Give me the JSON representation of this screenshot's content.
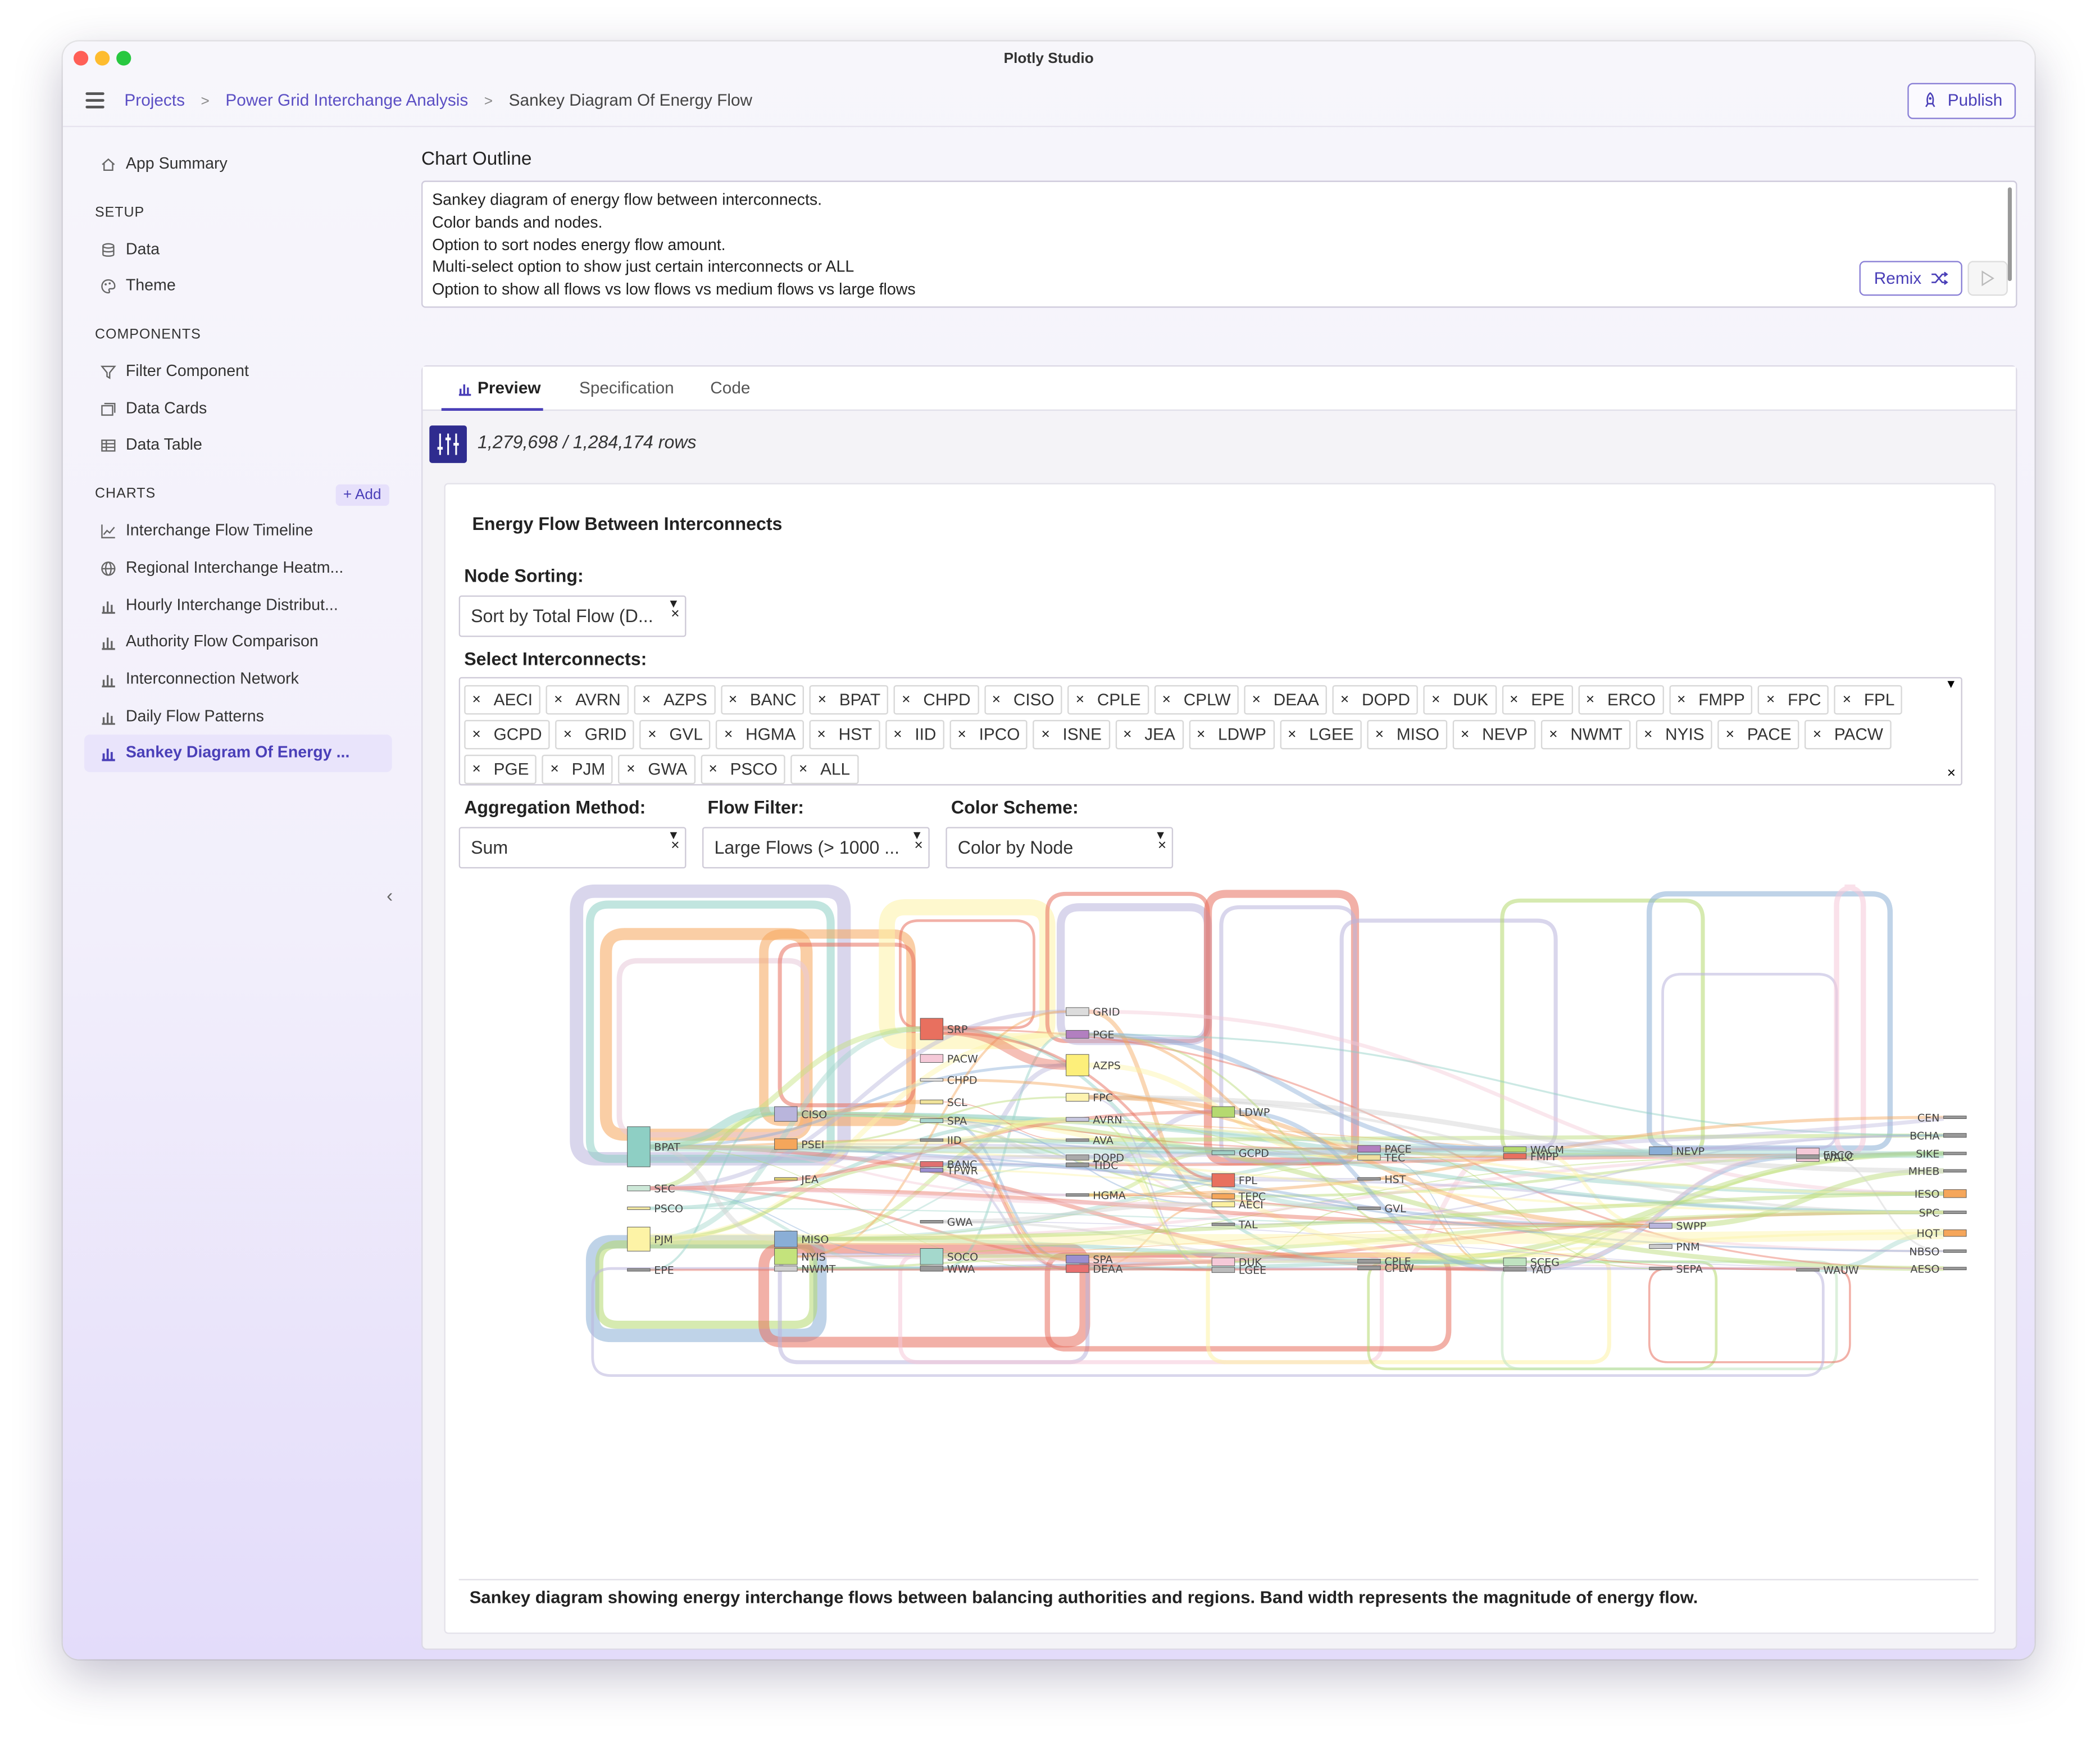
{
  "window": {
    "title": "Plotly Studio"
  },
  "breadcrumb": {
    "projects": "Projects",
    "project": "Power Grid Interchange Analysis",
    "current": "Sankey Diagram Of Energy Flow"
  },
  "publish_label": "Publish",
  "sidebar": {
    "app_summary": "App Summary",
    "setup_title": "SETUP",
    "setup_items": [
      "Data",
      "Theme"
    ],
    "components_title": "COMPONENTS",
    "component_items": [
      "Filter Component",
      "Data Cards",
      "Data Table"
    ],
    "charts_title": "CHARTS",
    "add_label": "+ Add",
    "chart_items": [
      "Interchange Flow Timeline",
      "Regional Interchange Heatm...",
      "Hourly Interchange Distribut...",
      "Authority Flow Comparison",
      "Interconnection Network",
      "Daily Flow Patterns",
      "Sankey Diagram Of Energy ..."
    ]
  },
  "outline": {
    "title": "Chart Outline",
    "lines": [
      "Sankey diagram of energy flow between interconnects.",
      "Color bands and nodes.",
      "Option to sort nodes energy flow amount.",
      "Multi-select option to show just certain interconnects or ALL",
      "Option to show all flows vs low flows vs medium flows vs large flows"
    ],
    "remix_label": "Remix"
  },
  "tabs": [
    "Preview",
    "Specification",
    "Code"
  ],
  "rows_text": "1,279,698 / 1,284,174 rows",
  "card": {
    "title": "Energy Flow Between Interconnects",
    "node_sorting_label": "Node Sorting:",
    "node_sorting_value": "Sort by Total Flow (D...",
    "interconnects_label": "Select Interconnects:",
    "interconnects": [
      "AECI",
      "AVRN",
      "AZPS",
      "BANC",
      "BPAT",
      "CHPD",
      "CISO",
      "CPLE",
      "CPLW",
      "DEAA",
      "DOPD",
      "DUK",
      "EPE",
      "ERCO",
      "FMPP",
      "FPC",
      "FPL",
      "GCPD",
      "GRID",
      "GVL",
      "HGMA",
      "HST",
      "IID",
      "IPCO",
      "ISNE",
      "JEA",
      "LDWP",
      "LGEE",
      "MISO",
      "NEVP",
      "NWMT",
      "NYIS",
      "PACE",
      "PACW",
      "PGE",
      "PJM",
      "GWA",
      "PSCO",
      "ALL"
    ],
    "aggregation_label": "Aggregation Method:",
    "aggregation_value": "Sum",
    "flow_filter_label": "Flow Filter:",
    "flow_filter_value": "Large Flows (> 1000 ...",
    "color_scheme_label": "Color Scheme:",
    "color_scheme_value": "Color by Node",
    "caption": "Sankey diagram showing energy interchange flows between balancing authorities and regions. Band width represents the magnitude of energy flow."
  },
  "sankey": {
    "nodes": [
      {
        "name": "BPAT",
        "color": "#8ecfc4"
      },
      {
        "name": "SEC",
        "color": "#cde8d8"
      },
      {
        "name": "PSCO",
        "color": "#f1e7a2"
      },
      {
        "name": "PJM",
        "color": "#fdf3a6"
      },
      {
        "name": "EPE",
        "color": "#999999"
      },
      {
        "name": "CISO",
        "color": "#b9b5dc"
      },
      {
        "name": "PSEI",
        "color": "#f5a65b"
      },
      {
        "name": "JEA",
        "color": "#e0d070"
      },
      {
        "name": "MISO",
        "color": "#8aaed6"
      },
      {
        "name": "NYIS",
        "color": "#c4e37c"
      },
      {
        "name": "NWMT",
        "color": "#d0d0d0"
      },
      {
        "name": "SRP",
        "color": "#e8705f"
      },
      {
        "name": "PACW",
        "color": "#f5c9d8"
      },
      {
        "name": "CHPD",
        "color": "#e8e8e8"
      },
      {
        "name": "SCL",
        "color": "#f0e39a"
      },
      {
        "name": "SPA",
        "color": "#a9d6cf"
      },
      {
        "name": "IID",
        "color": "#999999"
      },
      {
        "name": "BANC",
        "color": "#e07070"
      },
      {
        "name": "TPWR",
        "color": "#9b8fd0"
      },
      {
        "name": "GWA",
        "color": "#999999"
      },
      {
        "name": "SOCO",
        "color": "#a4d8cc"
      },
      {
        "name": "WWA",
        "color": "#999999"
      },
      {
        "name": "GRID",
        "color": "#dcdcdc"
      },
      {
        "name": "PGE",
        "color": "#b27fc0"
      },
      {
        "name": "AZPS",
        "color": "#fdef7a"
      },
      {
        "name": "FPC",
        "color": "#fdf3b0"
      },
      {
        "name": "AVRN",
        "color": "#c8c8e0"
      },
      {
        "name": "AVA",
        "color": "#999999"
      },
      {
        "name": "DOPD",
        "color": "#aaaaaa"
      },
      {
        "name": "TIDC",
        "color": "#999999"
      },
      {
        "name": "HGMA",
        "color": "#999999"
      },
      {
        "name": "SPA",
        "color": "#9b8fd0"
      },
      {
        "name": "DEAA",
        "color": "#e87070"
      },
      {
        "name": "LDWP",
        "color": "#b5d970"
      },
      {
        "name": "GCPD",
        "color": "#9fd0c6"
      },
      {
        "name": "FPL",
        "color": "#e8705f"
      },
      {
        "name": "TEPC",
        "color": "#f5a65b"
      },
      {
        "name": "AECI",
        "color": "#fdf0a0"
      },
      {
        "name": "TAL",
        "color": "#999999"
      },
      {
        "name": "DUK",
        "color": "#f5c9d8"
      },
      {
        "name": "LGEE",
        "color": "#bbbbbb"
      },
      {
        "name": "PACE",
        "color": "#b27fc0"
      },
      {
        "name": "TEC",
        "color": "#f0e0a0"
      },
      {
        "name": "HST",
        "color": "#999999"
      },
      {
        "name": "GVL",
        "color": "#999999"
      },
      {
        "name": "CPLE",
        "color": "#999999"
      },
      {
        "name": "CPLW",
        "color": "#999999"
      },
      {
        "name": "WACM",
        "color": "#b5d970"
      },
      {
        "name": "FMPP",
        "color": "#e8705f"
      },
      {
        "name": "SCEG",
        "color": "#bfe3c0"
      },
      {
        "name": "YAD",
        "color": "#999999"
      },
      {
        "name": "NEVP",
        "color": "#8aaed6"
      },
      {
        "name": "SWPP",
        "color": "#b9b5dc"
      },
      {
        "name": "PNM",
        "color": "#cccccc"
      },
      {
        "name": "SEPA",
        "color": "#999999"
      },
      {
        "name": "ERCO",
        "color": "#f5c9d8"
      },
      {
        "name": "WALC",
        "color": "#999999"
      },
      {
        "name": "WAUW",
        "color": "#999999"
      },
      {
        "name": "CEN",
        "color": "#999999"
      },
      {
        "name": "BCHA",
        "color": "#999999"
      },
      {
        "name": "SIKE",
        "color": "#999999"
      },
      {
        "name": "MHEB",
        "color": "#999999"
      },
      {
        "name": "IESO",
        "color": "#f5a65b"
      },
      {
        "name": "SPC",
        "color": "#999999"
      },
      {
        "name": "HQT",
        "color": "#f5a65b"
      },
      {
        "name": "NBSO",
        "color": "#999999"
      },
      {
        "name": "AESO",
        "color": "#999999"
      }
    ]
  }
}
